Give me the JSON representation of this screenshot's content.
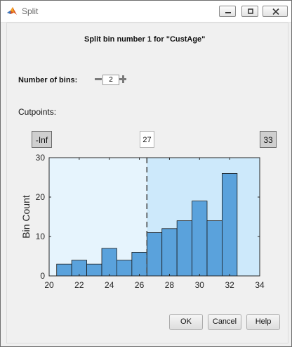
{
  "window": {
    "title": "Split"
  },
  "heading": "Split bin number 1 for \"CustAge\"",
  "bins_control": {
    "label": "Number of bins:",
    "value": "2"
  },
  "cutpoints": {
    "label": "Cutpoints:",
    "left": "-Inf",
    "middle": "27",
    "right": "33"
  },
  "buttons": {
    "ok": "OK",
    "cancel": "Cancel",
    "help": "Help"
  },
  "colors": {
    "bar": "#5aa2dc",
    "region1": "#e6f4fd",
    "region2": "#cde9fb"
  },
  "chart_data": {
    "type": "bar",
    "ylabel": "Bin Count",
    "xlabel": "",
    "xlim": [
      20,
      34
    ],
    "ylim": [
      0,
      30
    ],
    "xticks": [
      20,
      22,
      24,
      26,
      28,
      30,
      32,
      34
    ],
    "yticks": [
      0,
      10,
      20,
      30
    ],
    "bin_edges": [
      20.5,
      21.5,
      22.5,
      23.5,
      24.5,
      25.5,
      26.5,
      27.5,
      28.5,
      29.5,
      30.5,
      31.5,
      32.5
    ],
    "values": [
      3,
      4,
      3,
      7,
      4,
      6,
      11,
      12,
      14,
      19,
      14,
      26
    ],
    "split_line": 26.5,
    "grid": false
  }
}
